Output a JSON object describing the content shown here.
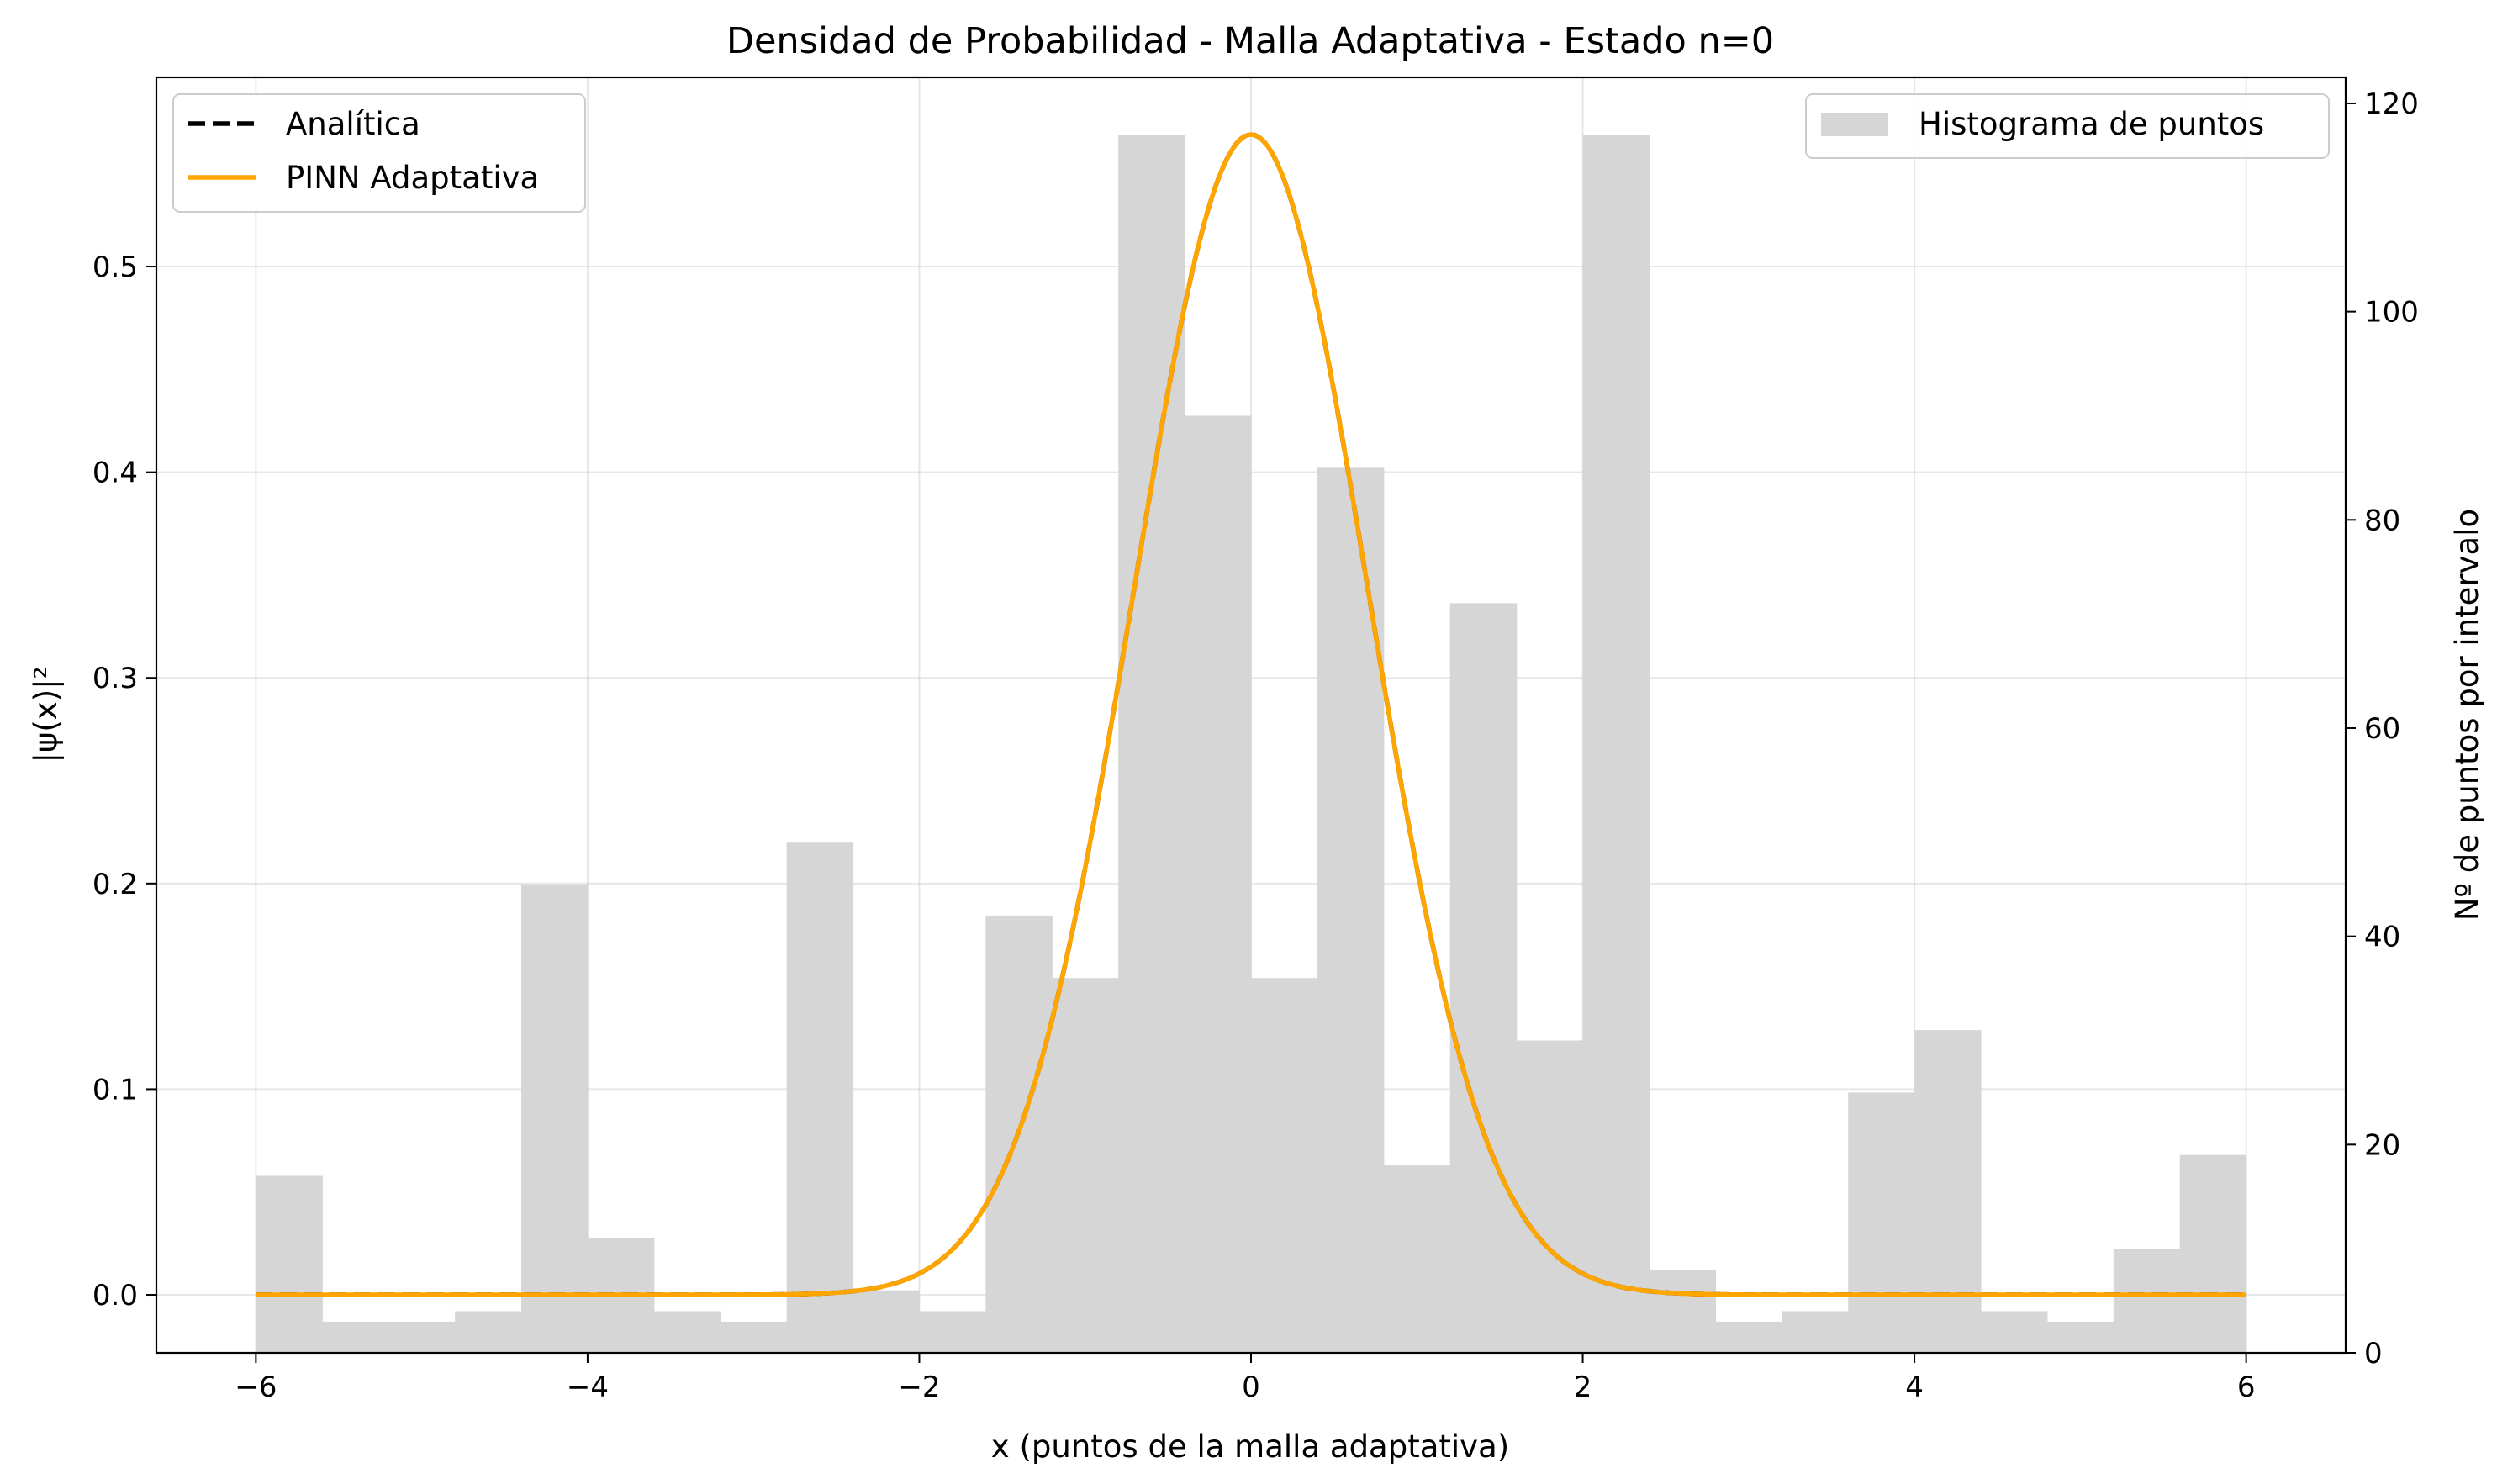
{
  "chart_data": {
    "type": "line",
    "title": "Densidad de Probabilidad - Malla Adaptativa - Estado n=0",
    "xlabel": "x (puntos de la malla adaptativa)",
    "ylabel_left": "|ψ(x)|²",
    "ylabel_right": "Nº de puntos por intervalo",
    "xlim": [
      -6.6,
      6.6
    ],
    "ylim_left": [
      -0.0282,
      0.592
    ],
    "ylim_right": [
      0,
      122.5
    ],
    "x_ticks": [
      -6,
      -4,
      -2,
      0,
      2,
      4,
      6
    ],
    "x_tick_labels": [
      "−6",
      "−4",
      "−2",
      "0",
      "2",
      "4",
      "6"
    ],
    "y_left_ticks": [
      0.0,
      0.1,
      0.2,
      0.3,
      0.4,
      0.5
    ],
    "y_left_tick_labels": [
      "0.0",
      "0.1",
      "0.2",
      "0.3",
      "0.4",
      "0.5"
    ],
    "y_right_ticks": [
      0,
      20,
      40,
      60,
      80,
      100,
      120
    ],
    "y_right_tick_labels": [
      "0",
      "20",
      "40",
      "60",
      "80",
      "100",
      "120"
    ],
    "grid": true,
    "legend_left": {
      "placement": "top-left",
      "entries": [
        "Analítica",
        "PINN Adaptativa"
      ]
    },
    "legend_right": {
      "placement": "top-right",
      "entries": [
        "Histograma de puntos"
      ]
    },
    "histogram": {
      "name": "Histograma de puntos",
      "color": "#d6d6d6",
      "bin_edges": [
        -6.0,
        -5.6,
        -5.2,
        -4.8,
        -4.4,
        -4.0,
        -3.6,
        -3.2,
        -2.8,
        -2.4,
        -2.0,
        -1.6,
        -1.2,
        -0.8,
        -0.4,
        0.0,
        0.4,
        0.8,
        1.2,
        1.6,
        2.0,
        2.4,
        2.8,
        3.2,
        3.6,
        4.0,
        4.4,
        4.8,
        5.2,
        5.6,
        6.0
      ],
      "counts": [
        17,
        3,
        3,
        4,
        45,
        11,
        4,
        3,
        49,
        6,
        4,
        42,
        36,
        117,
        90,
        36,
        85,
        18,
        72,
        30,
        117,
        8,
        3,
        4,
        25,
        31,
        4,
        3,
        10,
        19
      ]
    },
    "series": [
      {
        "name": "Analítica",
        "color": "#000000",
        "style": "dashed",
        "function": "exp(-x^2)/sqrt(pi)",
        "x_range": [
          -6,
          6
        ],
        "peak": 0.5642
      },
      {
        "name": "PINN Adaptativa",
        "color": "#ffa500",
        "style": "solid",
        "function": "exp(-x^2)/sqrt(pi)",
        "x_range": [
          -6,
          6
        ],
        "peak": 0.5642
      }
    ]
  }
}
